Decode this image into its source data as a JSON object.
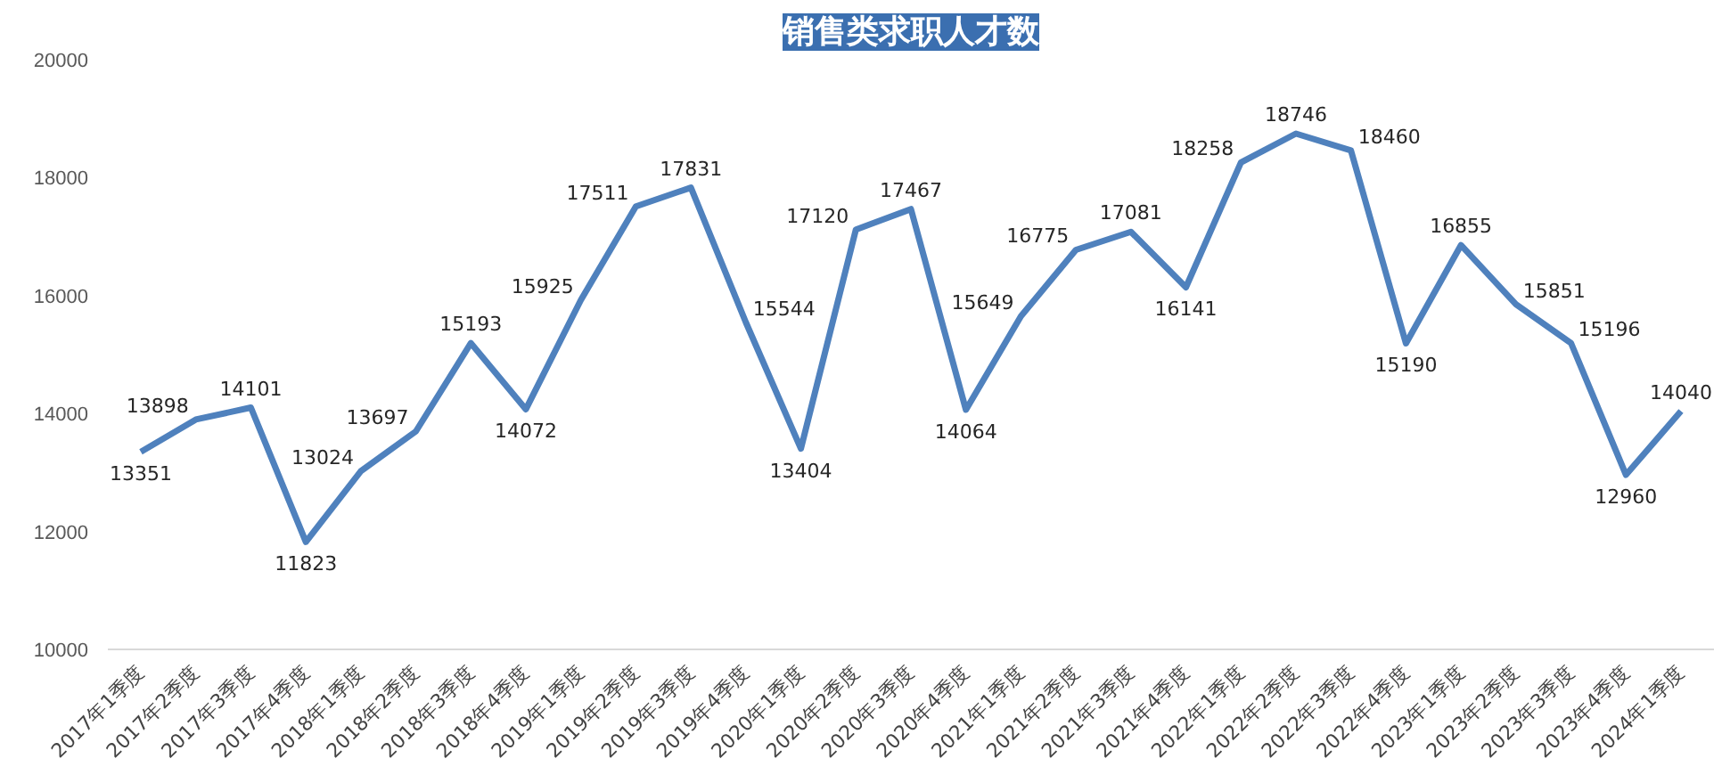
{
  "chart_data": {
    "type": "line",
    "title": "销售类求职人才数",
    "categories": [
      "2017年1季度",
      "2017年2季度",
      "2017年3季度",
      "2017年4季度",
      "2018年1季度",
      "2018年2季度",
      "2018年3季度",
      "2018年4季度",
      "2019年1季度",
      "2019年2季度",
      "2019年3季度",
      "2019年4季度",
      "2020年1季度",
      "2020年2季度",
      "2020年3季度",
      "2020年4季度",
      "2021年1季度",
      "2021年2季度",
      "2021年3季度",
      "2021年4季度",
      "2022年1季度",
      "2022年2季度",
      "2022年3季度",
      "2022年4季度",
      "2023年1季度",
      "2023年2季度",
      "2023年3季度",
      "2023年4季度",
      "2024年1季度"
    ],
    "series": [
      {
        "color": "#4f81bd",
        "values": [
          13351,
          13898,
          14101,
          11823,
          13024,
          13697,
          15193,
          14072,
          15925,
          17511,
          17831,
          15544,
          13404,
          17120,
          17467,
          14064,
          15649,
          16775,
          17081,
          16141,
          18258,
          18746,
          18460,
          15190,
          16855,
          15851,
          15196,
          12960,
          14040
        ]
      }
    ],
    "ylim": [
      10000,
      20000
    ],
    "yticks": [
      10000,
      12000,
      14000,
      16000,
      18000,
      20000
    ],
    "grid": false,
    "marker": "none",
    "line_style": "solid",
    "data_labels": true
  }
}
